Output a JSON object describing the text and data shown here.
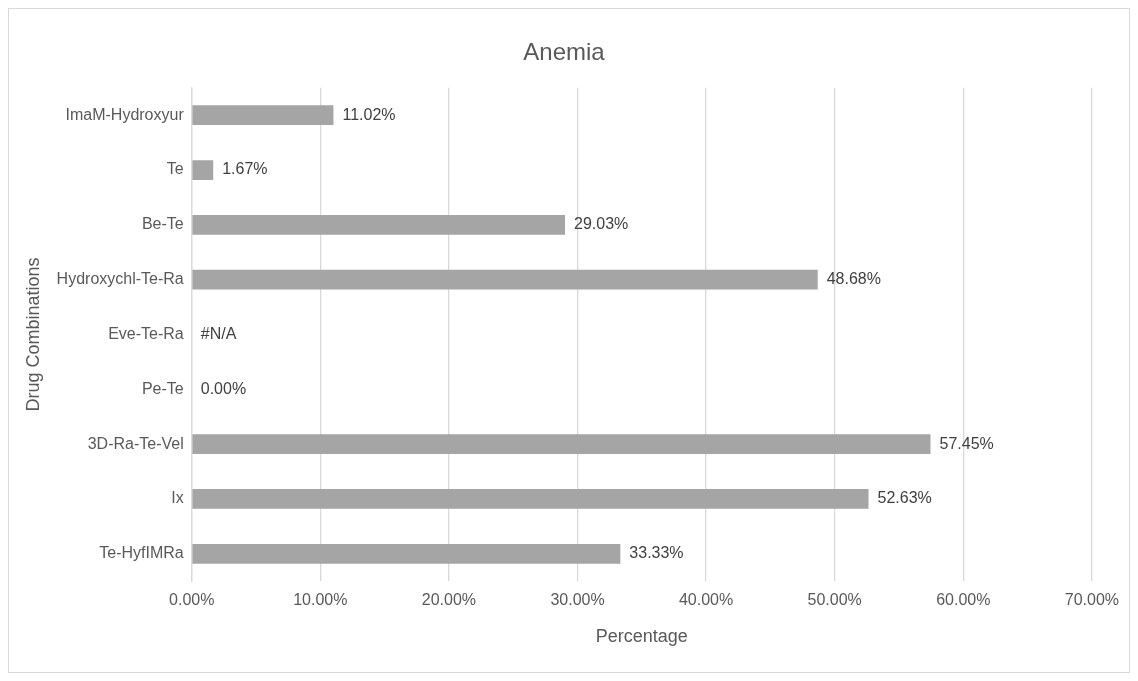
{
  "chart_data": {
    "type": "bar",
    "orientation": "horizontal",
    "title": "Anemia",
    "xlabel": "Percentage",
    "ylabel": "Drug Combinations",
    "categories": [
      "ImaM-Hydroxyur",
      "Te",
      "Be-Te",
      "Hydroxychl-Te-Ra",
      "Eve-Te-Ra",
      "Pe-Te",
      "3D-Ra-Te-Vel",
      "Ix",
      "Te-HyfIMRa"
    ],
    "values": [
      11.02,
      1.67,
      29.03,
      48.68,
      null,
      0,
      57.45,
      52.63,
      33.33
    ],
    "value_labels": [
      "11.02%",
      "1.67%",
      "29.03%",
      "48.68%",
      "#N/A",
      "0.00%",
      "57.45%",
      "52.63%",
      "33.33%"
    ],
    "color": "#a5a5a5",
    "xlim": [
      0,
      70
    ],
    "xticks": [
      {
        "value": 0,
        "label": "0.00%"
      },
      {
        "value": 10,
        "label": "10.00%"
      },
      {
        "value": 20,
        "label": "20.00%"
      },
      {
        "value": 30,
        "label": "30.00%"
      },
      {
        "value": 40,
        "label": "40.00%"
      },
      {
        "value": 50,
        "label": "50.00%"
      },
      {
        "value": 60,
        "label": "60.00%"
      },
      {
        "value": 70,
        "label": "70.00%"
      }
    ],
    "grid": "x"
  }
}
